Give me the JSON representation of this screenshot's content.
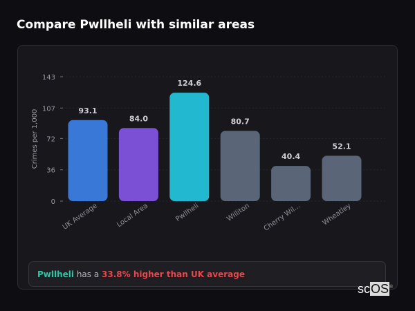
{
  "header": {
    "title": "Compare Pwllheli with similar areas"
  },
  "chart_data": {
    "type": "bar",
    "ylabel": "Crimes per 1,000",
    "xlabel": "",
    "ylim": [
      0,
      143
    ],
    "yticks": [
      0,
      36,
      72,
      107,
      143
    ],
    "grid": true,
    "categories": [
      "UK Average",
      "Local Area",
      "Pwllheli",
      "Williton",
      "Cherry Wil...",
      "Wheatley"
    ],
    "values": [
      93.1,
      84.0,
      124.6,
      80.7,
      40.4,
      52.1
    ],
    "value_labels": [
      "93.1",
      "84.0",
      "124.6",
      "80.7",
      "40.4",
      "52.1"
    ],
    "colors": [
      "#3a78d8",
      "#7b50d4",
      "#22b8cf",
      "#5a6577",
      "#5a6577",
      "#5a6577"
    ]
  },
  "summary": {
    "place": "Pwllheli",
    "middle": " has a ",
    "diff": "33.8% higher than UK average"
  },
  "logo": {
    "text_a": "sc",
    "text_b": "OS",
    "mark": "®"
  }
}
